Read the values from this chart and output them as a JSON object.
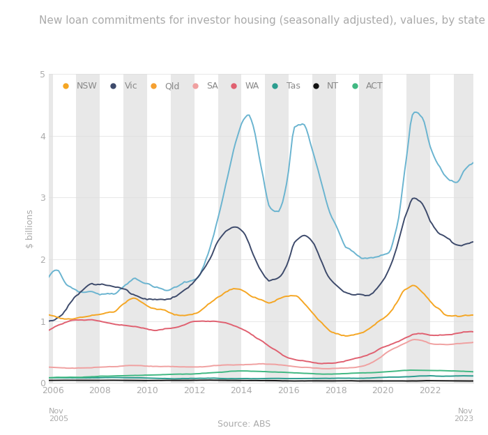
{
  "title": "New loan commitments for investor housing (seasonally adjusted), values, by state",
  "ylabel": "$ billions",
  "xlabel_source": "Source: ABS",
  "ylim": [
    0,
    5
  ],
  "yticks": [
    0,
    1,
    2,
    3,
    4,
    5
  ],
  "xtick_years": [
    2006,
    2008,
    2010,
    2012,
    2014,
    2016,
    2018,
    2020,
    2022
  ],
  "background_color": "#ffffff",
  "plot_bg_color": "#ffffff",
  "shading_color": "#e8e8e8",
  "series_colors": {
    "NSW": "#6ab4d0",
    "Vic": "#3d4a6b",
    "Qld": "#f5a623",
    "SA": "#f0a0a0",
    "WA": "#e06070",
    "Tas": "#2a9d8f",
    "NT": "#111111",
    "ACT": "#40b882"
  },
  "legend_colors": {
    "NSW": "#f5a623",
    "Vic": "#3d4a6b",
    "Qld": "#f5a030",
    "SA": "#f0a0a0",
    "WA": "#e06070",
    "Tas": "#2a9d8f",
    "NT": "#111111",
    "ACT": "#40b882"
  },
  "legend_order": [
    "NSW",
    "Vic",
    "Qld",
    "SA",
    "WA",
    "Tas",
    "NT",
    "ACT"
  ],
  "title_fontsize": 11,
  "axis_label_fontsize": 9,
  "tick_fontsize": 9,
  "legend_fontsize": 9,
  "line_width": 1.4
}
